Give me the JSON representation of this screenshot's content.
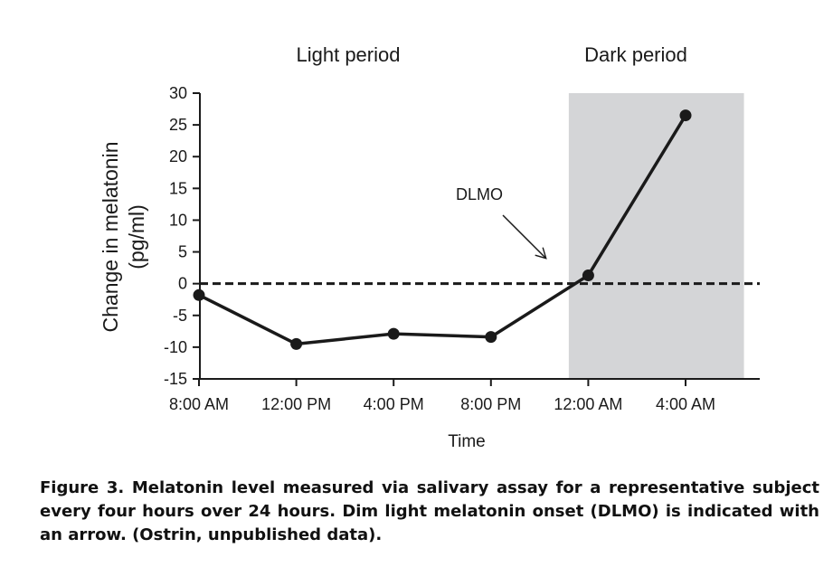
{
  "chart_data": {
    "type": "line",
    "x": [
      "8:00 AM",
      "12:00 PM",
      "4:00 PM",
      "8:00 PM",
      "12:00 AM",
      "4:00 AM"
    ],
    "series": [
      {
        "name": "Change in melatonin",
        "points": [
          {
            "t": 0,
            "v": -1.8
          },
          {
            "t": 4,
            "v": -9.5
          },
          {
            "t": 8,
            "v": -7.9
          },
          {
            "t": 12,
            "v": -8.4
          },
          {
            "t": 16,
            "v": 1.3
          },
          {
            "t": 20,
            "v": 26.5
          }
        ]
      }
    ],
    "xlim": [
      0,
      22.5
    ],
    "ylim": [
      -15,
      30
    ],
    "yticks": [
      30,
      25,
      20,
      15,
      10,
      5,
      0,
      -5,
      -10,
      -15
    ],
    "ylabel_line1": "Change in melatonin",
    "ylabel_line2": "(pg/ml)",
    "xlabel": "Time",
    "period_labels": {
      "light": "Light period",
      "dark": "Dark period"
    },
    "dark_period_range": [
      15.2,
      22.4
    ],
    "baseline": 0,
    "annotation": {
      "text": "DLMO"
    },
    "colors": {
      "line": "#1a1a1a",
      "shade": "#d4d5d7",
      "axis": "#1a1a1a"
    }
  },
  "caption": "Figure 3. Melatonin level measured via salivary assay for a representative subject every four hours over 24 hours. Dim light melatonin onset (DLMO) is indicated with an arrow. (Ostrin, unpublished data)."
}
